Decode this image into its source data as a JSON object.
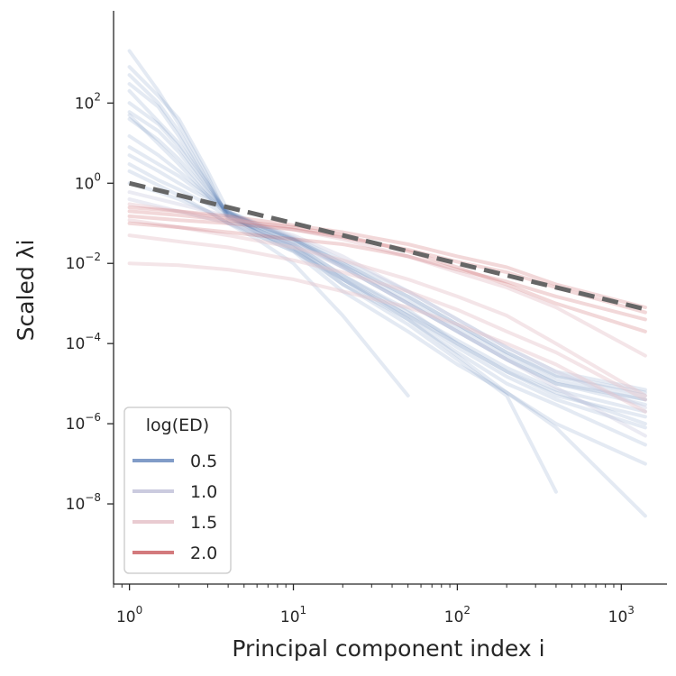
{
  "chart_data": {
    "type": "line",
    "xscale": "log",
    "yscale": "log",
    "xlim": [
      0.8,
      1900
    ],
    "ylim": [
      1e-10,
      20000.0
    ],
    "xlabel": "Principal component index i",
    "ylabel": "Scaled λi",
    "x_ticks": [
      {
        "value": 1,
        "base": "10",
        "exp": "0"
      },
      {
        "value": 10,
        "base": "10",
        "exp": "1"
      },
      {
        "value": 100,
        "base": "10",
        "exp": "2"
      },
      {
        "value": 1000,
        "base": "10",
        "exp": "3"
      }
    ],
    "y_ticks": [
      {
        "value": 100,
        "base": "10",
        "exp": "2"
      },
      {
        "value": 1,
        "base": "10",
        "exp": "0"
      },
      {
        "value": 0.01,
        "base": "10",
        "exp": "−2"
      },
      {
        "value": 0.0001,
        "base": "10",
        "exp": "−4"
      },
      {
        "value": 1e-06,
        "base": "10",
        "exp": "−6"
      },
      {
        "value": 1e-08,
        "base": "10",
        "exp": "−8"
      }
    ],
    "legend": {
      "title": "log(ED)",
      "placement": "lower-left",
      "entries": [
        {
          "label": "0.5",
          "color": "#4c72b0"
        },
        {
          "label": "1.0",
          "color": "#c5c5dc"
        },
        {
          "label": "1.5",
          "color": "#e7c5cc"
        },
        {
          "label": "2.0",
          "color": "#c44e52"
        }
      ]
    },
    "reference_line": {
      "style": "dashed",
      "color": "#666666",
      "points": [
        [
          1,
          1.0
        ],
        [
          1400,
          0.00072
        ]
      ]
    },
    "series_groups": [
      {
        "ed": "0.5",
        "color": "#4c72b0",
        "opacity": 0.15,
        "curves": [
          {
            "x": [
              1,
              1.5,
              2,
              3,
              4,
              6,
              10,
              20,
              50,
              100,
              200,
              400,
              1400
            ],
            "y": [
              2000,
              200,
              30,
              1.5,
              0.12,
              0.05,
              0.02,
              0.002,
              0.0002,
              3e-05,
              6e-06,
              1e-06,
              1e-07
            ]
          },
          {
            "x": [
              1,
              1.5,
              2,
              3,
              4,
              6,
              10,
              20,
              50,
              100,
              200,
              400,
              1400
            ],
            "y": [
              800,
              150,
              40,
              2,
              0.2,
              0.06,
              0.025,
              0.003,
              0.0004,
              6e-05,
              1e-05,
              3e-06,
              3e-07
            ]
          },
          {
            "x": [
              1,
              1.5,
              2,
              3,
              4,
              6,
              10,
              20,
              50,
              100,
              200,
              400,
              1400
            ],
            "y": [
              300,
              80,
              15,
              1,
              0.15,
              0.07,
              0.03,
              0.005,
              0.0007,
              0.0001,
              2e-05,
              6e-06,
              1e-06
            ]
          },
          {
            "x": [
              1,
              1.5,
              2,
              3,
              4,
              6,
              10,
              20,
              50,
              100,
              200,
              400,
              1400
            ],
            "y": [
              100,
              30,
              8,
              0.8,
              0.18,
              0.08,
              0.035,
              0.008,
              0.001,
              0.0002,
              4e-05,
              1e-05,
              3e-06
            ]
          },
          {
            "x": [
              1,
              1.5,
              2,
              3,
              4,
              6,
              10,
              20,
              50,
              100,
              200,
              400,
              1400
            ],
            "y": [
              40,
              12,
              4,
              0.6,
              0.2,
              0.09,
              0.04,
              0.01,
              0.0015,
              0.0003,
              6e-05,
              1.5e-05,
              5e-06
            ]
          },
          {
            "x": [
              1,
              1.5,
              2,
              3,
              4,
              6,
              10,
              20,
              50,
              100,
              200,
              400,
              1400
            ],
            "y": [
              15,
              5,
              2,
              0.5,
              0.2,
              0.1,
              0.045,
              0.012,
              0.002,
              0.0004,
              8e-05,
              2e-05,
              7e-06
            ]
          },
          {
            "x": [
              1,
              1.5,
              2,
              3,
              4,
              6,
              10,
              20,
              50,
              100,
              200,
              400,
              1400
            ],
            "y": [
              5,
              2,
              1,
              0.4,
              0.18,
              0.09,
              0.04,
              0.008,
              0.001,
              0.0002,
              4e-05,
              1e-05,
              4e-06
            ]
          },
          {
            "x": [
              1,
              1.5,
              2,
              3,
              4,
              6,
              10,
              20,
              50,
              100,
              200,
              400,
              1400
            ],
            "y": [
              1,
              0.6,
              0.4,
              0.2,
              0.1,
              0.05,
              0.02,
              0.004,
              0.0005,
              0.0001,
              2e-05,
              5e-06,
              1.5e-06
            ]
          },
          {
            "x": [
              1,
              1.5,
              2,
              3,
              4,
              6,
              10,
              20,
              50,
              100,
              200,
              400,
              1400
            ],
            "y": [
              500,
              100,
              20,
              1.2,
              0.14,
              0.06,
              0.025,
              0.004,
              0.0005,
              8e-05,
              1.5e-05,
              4e-06,
              8e-07
            ]
          },
          {
            "x": [
              1,
              1.5,
              2,
              3,
              4,
              6,
              10,
              20,
              50,
              100,
              200,
              400,
              1400
            ],
            "y": [
              60,
              20,
              6,
              0.7,
              0.19,
              0.085,
              0.038,
              0.009,
              0.0012,
              0.00025,
              5e-05,
              1.2e-05,
              4e-06
            ]
          },
          {
            "x": [
              1,
              1.5,
              2,
              3,
              4,
              6,
              10,
              20,
              50,
              100,
              200,
              400,
              1400
            ],
            "y": [
              8,
              3,
              1.5,
              0.45,
              0.19,
              0.095,
              0.042,
              0.01,
              0.0015,
              0.0003,
              6e-05,
              1.6e-05,
              6e-06
            ]
          },
          {
            "x": [
              1,
              1.5,
              2,
              3,
              4,
              6,
              10,
              20,
              50,
              100,
              200,
              400,
              1400
            ],
            "y": [
              3,
              1.2,
              0.7,
              0.3,
              0.15,
              0.07,
              0.03,
              0.005,
              0.0006,
              0.00012,
              2.5e-05,
              7e-06,
              2e-06
            ]
          },
          {
            "x": [
              1,
              2,
              3,
              4,
              6,
              10,
              20,
              50
            ],
            "y": [
              2,
              0.5,
              0.2,
              0.1,
              0.04,
              0.01,
              0.0005,
              5e-06
            ]
          },
          {
            "x": [
              1,
              2,
              3,
              4,
              6,
              10,
              20,
              50,
              100,
              200,
              400,
              1400
            ],
            "y": [
              200,
              10,
              1,
              0.16,
              0.07,
              0.028,
              0.004,
              0.0004,
              5e-05,
              6e-06,
              8e-07,
              5e-09
            ]
          },
          {
            "x": [
              1,
              2,
              3,
              4,
              6,
              10,
              20,
              50,
              100,
              200,
              400
            ],
            "y": [
              50,
              3,
              0.5,
              0.15,
              0.06,
              0.022,
              0.003,
              0.0003,
              4e-05,
              5e-06,
              2e-08
            ]
          }
        ]
      },
      {
        "ed": "1.0",
        "color": "#c5c5dc",
        "opacity": 0.35,
        "curves": [
          {
            "x": [
              1,
              2,
              4,
              10,
              20,
              50,
              100,
              200,
              400,
              1400
            ],
            "y": [
              0.6,
              0.3,
              0.15,
              0.05,
              0.015,
              0.002,
              0.0004,
              8e-05,
              2e-05,
              2.5e-06
            ]
          },
          {
            "x": [
              1,
              2,
              4,
              10,
              20,
              50,
              100,
              200,
              400,
              1400
            ],
            "y": [
              0.4,
              0.2,
              0.1,
              0.03,
              0.008,
              0.001,
              0.0002,
              4e-05,
              8e-06,
              5e-07
            ]
          }
        ]
      },
      {
        "ed": "1.5",
        "color": "#e7c5cc",
        "opacity": 0.45,
        "curves": [
          {
            "x": [
              1,
              2,
              4,
              10,
              20,
              50,
              100,
              200,
              400,
              1400
            ],
            "y": [
              0.3,
              0.2,
              0.13,
              0.07,
              0.04,
              0.015,
              0.006,
              0.0025,
              0.0008,
              5e-05
            ]
          },
          {
            "x": [
              1,
              2,
              4,
              10,
              20,
              50,
              100,
              200,
              400,
              1400
            ],
            "y": [
              0.12,
              0.08,
              0.05,
              0.025,
              0.012,
              0.004,
              0.0015,
              0.0005,
              0.0001,
              5e-06
            ]
          },
          {
            "x": [
              1,
              2,
              4,
              10,
              20,
              50,
              100,
              200,
              400,
              1400
            ],
            "y": [
              0.01,
              0.009,
              0.007,
              0.004,
              0.002,
              0.0008,
              0.0003,
              0.0001,
              3e-05,
              2e-06
            ]
          },
          {
            "x": [
              1,
              2,
              4,
              10,
              20,
              50,
              100,
              200,
              400,
              1400
            ],
            "y": [
              0.05,
              0.035,
              0.025,
              0.012,
              0.006,
              0.002,
              0.0007,
              0.0002,
              6e-05,
              4e-06
            ]
          }
        ]
      },
      {
        "ed": "2.0",
        "color": "#c44e52",
        "opacity": 0.22,
        "curves": [
          {
            "x": [
              1,
              2,
              4,
              10,
              20,
              50,
              100,
              200,
              400,
              1400
            ],
            "y": [
              0.25,
              0.2,
              0.15,
              0.09,
              0.06,
              0.03,
              0.015,
              0.008,
              0.003,
              0.0008
            ]
          },
          {
            "x": [
              1,
              2,
              4,
              10,
              20,
              50,
              100,
              200,
              400,
              1400
            ],
            "y": [
              0.15,
              0.12,
              0.1,
              0.07,
              0.045,
              0.022,
              0.011,
              0.006,
              0.0025,
              0.0006
            ]
          },
          {
            "x": [
              1,
              2,
              4,
              10,
              20,
              50,
              100,
              200,
              400,
              1400
            ],
            "y": [
              0.2,
              0.16,
              0.12,
              0.08,
              0.05,
              0.02,
              0.008,
              0.003,
              0.001,
              0.0002
            ]
          },
          {
            "x": [
              1,
              2,
              4,
              10,
              20,
              50,
              100,
              200,
              400,
              1400
            ],
            "y": [
              0.1,
              0.08,
              0.06,
              0.04,
              0.03,
              0.015,
              0.007,
              0.0035,
              0.0015,
              0.0004
            ]
          }
        ]
      }
    ]
  }
}
